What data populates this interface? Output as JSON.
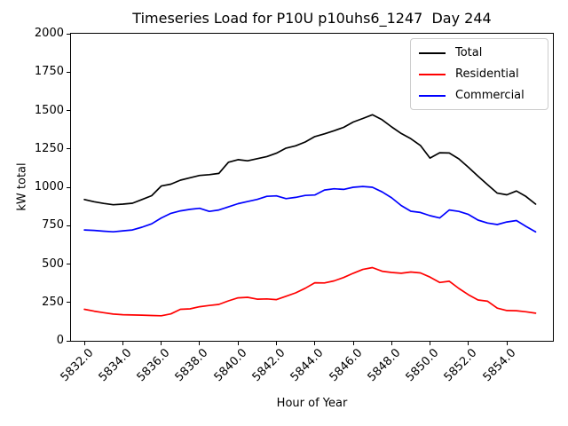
{
  "chart_data": {
    "type": "line",
    "title": "Timeseries Load for P10U p10uhs6_1247  Day 244",
    "xlabel": "Hour of Year",
    "ylabel": "kW total",
    "xlim": [
      5831.3,
      5856.4
    ],
    "ylim": [
      0,
      2000
    ],
    "grid": false,
    "legend_position": "upper right",
    "yticks": [
      0,
      250,
      500,
      750,
      1000,
      1250,
      1500,
      1750,
      2000
    ],
    "xtick_labels": [
      "5832.0",
      "5834.0",
      "5836.0",
      "5838.0",
      "5840.0",
      "5842.0",
      "5844.0",
      "5846.0",
      "5848.0",
      "5850.0",
      "5852.0",
      "5854.0"
    ],
    "x": [
      5832.0,
      5832.5,
      5833.0,
      5833.5,
      5834.0,
      5834.5,
      5835.0,
      5835.5,
      5836.0,
      5836.5,
      5837.0,
      5837.5,
      5838.0,
      5838.5,
      5839.0,
      5839.5,
      5840.0,
      5840.5,
      5841.0,
      5841.5,
      5842.0,
      5842.5,
      5843.0,
      5843.5,
      5844.0,
      5844.5,
      5845.0,
      5845.5,
      5846.0,
      5846.5,
      5847.0,
      5847.5,
      5848.0,
      5848.5,
      5849.0,
      5849.5,
      5850.0,
      5850.5,
      5851.0,
      5851.5,
      5852.0,
      5852.5,
      5853.0,
      5853.5,
      5854.0,
      5854.5,
      5855.0,
      5855.5
    ],
    "series": [
      {
        "name": "Total",
        "color": "#000000",
        "values": [
          920,
          906,
          895,
          886,
          890,
          896,
          920,
          945,
          1008,
          1020,
          1046,
          1062,
          1077,
          1082,
          1090,
          1163,
          1180,
          1172,
          1186,
          1200,
          1222,
          1255,
          1270,
          1295,
          1330,
          1348,
          1368,
          1390,
          1425,
          1448,
          1472,
          1440,
          1393,
          1350,
          1316,
          1272,
          1190,
          1225,
          1223,
          1185,
          1130,
          1072,
          1017,
          962,
          951,
          976,
          940,
          890
        ]
      },
      {
        "name": "Residential",
        "color": "#ff0000",
        "values": [
          205,
          193,
          183,
          174,
          170,
          168,
          167,
          165,
          163,
          175,
          205,
          208,
          222,
          230,
          237,
          260,
          280,
          283,
          271,
          273,
          268,
          290,
          312,
          342,
          378,
          377,
          390,
          412,
          440,
          465,
          477,
          453,
          445,
          440,
          448,
          442,
          415,
          380,
          388,
          341,
          300,
          266,
          258,
          213,
          197,
          196,
          189,
          180
        ]
      },
      {
        "name": "Commercial",
        "color": "#0000ff",
        "values": [
          722,
          719,
          714,
          710,
          716,
          722,
          740,
          762,
          800,
          830,
          846,
          856,
          863,
          843,
          852,
          872,
          893,
          907,
          921,
          941,
          944,
          926,
          934,
          947,
          950,
          982,
          990,
          986,
          1000,
          1005,
          1000,
          970,
          931,
          881,
          844,
          836,
          815,
          800,
          852,
          843,
          823,
          786,
          767,
          757,
          774,
          783,
          745,
          710
        ]
      }
    ]
  }
}
